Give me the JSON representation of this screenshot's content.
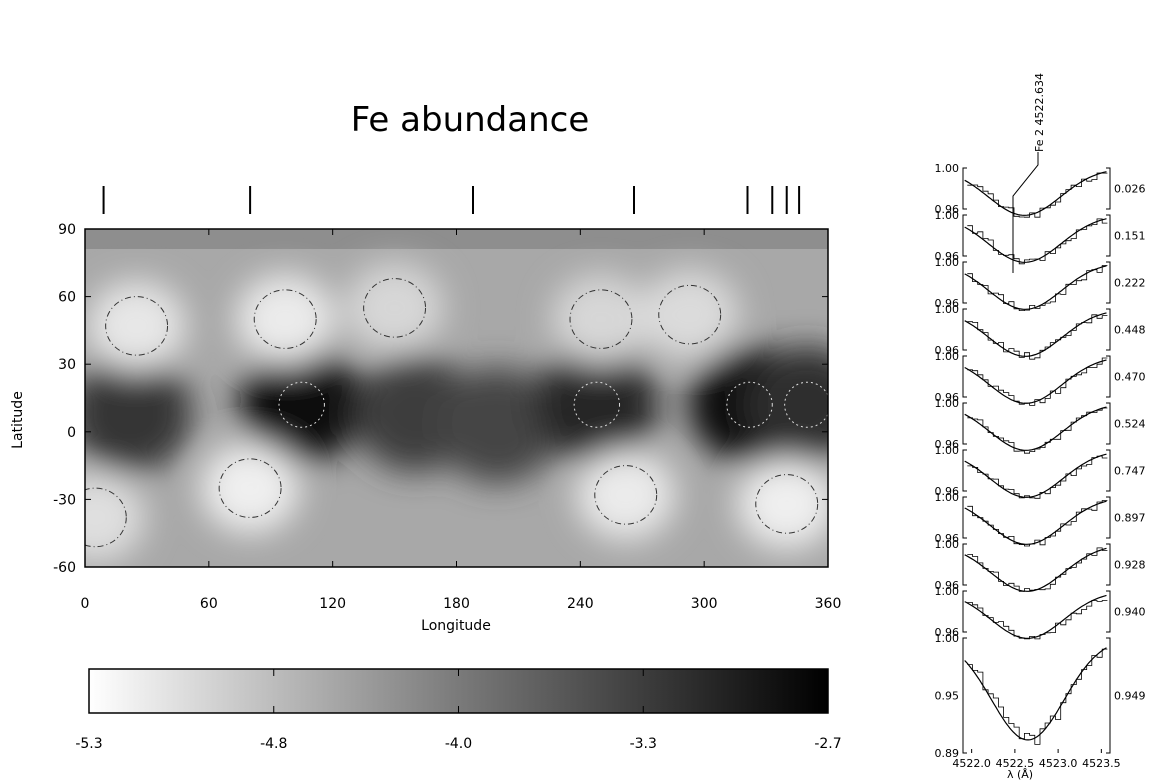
{
  "chart_data": [
    {
      "type": "heatmap",
      "title": "Fe abundance",
      "xlabel": "Longitude",
      "ylabel": "Latitude",
      "xlim": [
        0,
        360
      ],
      "ylim": [
        -60,
        90
      ],
      "x_ticks": [
        "0",
        "60",
        "120",
        "180",
        "240",
        "300",
        "360"
      ],
      "y_ticks": [
        "90",
        "60",
        "30",
        "0",
        "-30",
        "-60"
      ],
      "phase_markers_longitude": [
        9,
        80,
        188,
        266,
        321,
        333,
        340,
        346
      ],
      "dark_spots": [
        {
          "lon": 22,
          "lat": 8,
          "strength": 0.65
        },
        {
          "lon": 105,
          "lat": 12,
          "strength": 0.95
        },
        {
          "lon": 160,
          "lat": 8,
          "strength": 0.6
        },
        {
          "lon": 200,
          "lat": 3,
          "strength": 0.55
        },
        {
          "lon": 248,
          "lat": 12,
          "strength": 0.75
        },
        {
          "lon": 322,
          "lat": 12,
          "strength": 0.9
        },
        {
          "lon": 350,
          "lat": 12,
          "strength": 0.7
        }
      ],
      "bright_spots": [
        {
          "lon": 25,
          "lat": 47,
          "strength": 0.7
        },
        {
          "lon": 97,
          "lat": 50,
          "strength": 0.75
        },
        {
          "lon": 150,
          "lat": 55,
          "strength": 0.5
        },
        {
          "lon": 250,
          "lat": 50,
          "strength": 0.5
        },
        {
          "lon": 293,
          "lat": 52,
          "strength": 0.55
        },
        {
          "lon": 80,
          "lat": -25,
          "strength": 0.8
        },
        {
          "lon": 262,
          "lat": -28,
          "strength": 0.75
        },
        {
          "lon": 340,
          "lat": -32,
          "strength": 0.8
        },
        {
          "lon": 5,
          "lat": -38,
          "strength": 0.6
        }
      ],
      "colorbar": {
        "ticks": [
          "-5.3",
          "-4.8",
          "-4.0",
          "-3.3",
          "-2.7"
        ],
        "range": [
          -5.3,
          -2.7
        ],
        "scale": "white-to-black"
      }
    },
    {
      "type": "line",
      "line_label": "Fe 2 4522.634",
      "xlabel": "λ (Å)",
      "x_ticks": [
        "4522.0",
        "4522.5",
        "4523.0",
        "4523.5"
      ],
      "y_ticks_upper": [
        "1.00",
        "0.96"
      ],
      "y_ticks_last": [
        "1.00",
        "0.95",
        "0.89"
      ],
      "phases": [
        "0.026",
        "0.151",
        "0.222",
        "0.448",
        "0.470",
        "0.524",
        "0.747",
        "0.897",
        "0.928",
        "0.940",
        "0.949"
      ],
      "line_center": 4522.63,
      "line_depth": 0.075
    }
  ]
}
